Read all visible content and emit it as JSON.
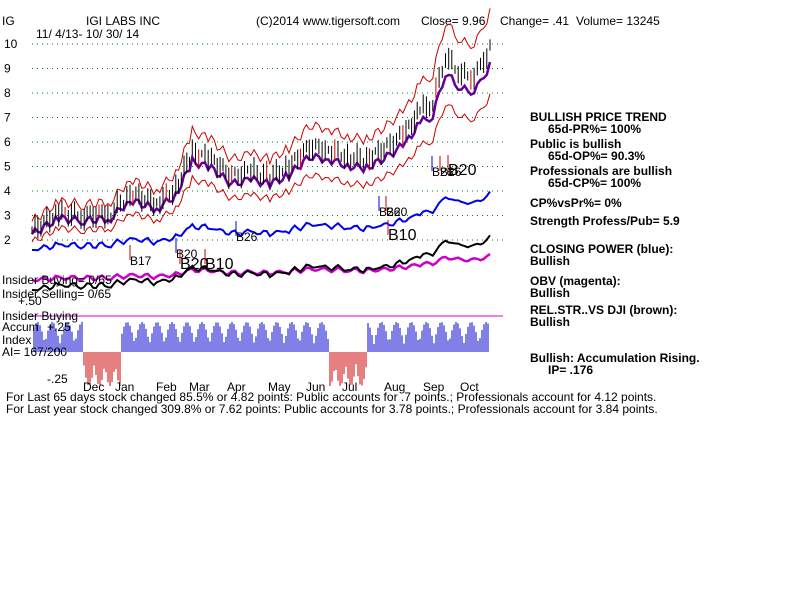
{
  "header": {
    "symbol": "IG",
    "company": "IGI LABS INC",
    "copyright": "(C)2014 www.tigersoft.com",
    "close": "Close=  9.96",
    "change": "Change= .41",
    "volume": "Volume= 13245",
    "date_range": "11/ 4/13- 10/ 30/ 14"
  },
  "y_axis_ticks": [
    "10",
    "9",
    "8",
    "7",
    "6",
    "5",
    "4",
    "3",
    "2"
  ],
  "x_axis_ticks": [
    "Dec",
    "Jan",
    "Feb",
    "Mar",
    "Apr",
    "May",
    "Jun",
    "Jul",
    "Aug",
    "Sep",
    "Oct"
  ],
  "left_labels": {
    "insider_buying_top": "Insider Buying= 0/65",
    "insider_selling": "Insider Selling= 0/65",
    "plus_50": "+.50",
    "insider_buying_bottom": "Insider Buying",
    "accum_label": "Accum",
    "accum_value": "+.25",
    "index": "Index",
    "ai": "AI= 167/200",
    "minus_25": "-.25"
  },
  "right_panel": [
    {
      "text": "BULLISH PRICE TREND",
      "bold": true
    },
    {
      "text": "65d-PR%= 100%",
      "bold": true,
      "indent": true
    },
    {
      "text": "Public is bullish",
      "bold": true
    },
    {
      "text": "65d-OP%= 90.3%",
      "bold": true,
      "indent": true
    },
    {
      "text": "Professionals are bullish",
      "bold": true
    },
    {
      "text": "65d-CP%= 100%",
      "bold": true,
      "indent": true
    },
    {
      "text": "CP%vsPr%=  0%",
      "bold": true
    },
    {
      "text": "Strength Profess/Pub= 5.9",
      "bold": true
    },
    {
      "text": "CLOSING POWER (blue):",
      "bold": true
    },
    {
      "text": "Bullish",
      "bold": true
    },
    {
      "text": "OBV (magenta):",
      "bold": true
    },
    {
      "text": "Bullish",
      "bold": true
    },
    {
      "text": "REL.STR..VS DJI (brown):",
      "bold": true
    },
    {
      "text": "Bullish",
      "bold": true
    },
    {
      "text": "Bullish: Accumulation Rising.",
      "bold": true
    },
    {
      "text": "IP=  .176",
      "bold": true,
      "indent": true
    }
  ],
  "signals": [
    "B17",
    "B20",
    "B26",
    "B20",
    "B10",
    "B26",
    "B20",
    "B26",
    "B10",
    "B26",
    "B20"
  ],
  "footer": {
    "line1": "For Last 65 days stock changed  85.5% or  4.82 points:  Public accounts for  .7 points.;  Professionals account for  4.12 points.",
    "line2": "For Last year stock changed  309.8% or  7.62 points:  Public accounts for  3.78 points.;  Professionals account for  3.84 points."
  },
  "colors": {
    "price_bar": "#000000",
    "up_bar": "#cc0000",
    "ma_purple": "#660099",
    "band_red": "#cc0000",
    "closing_power": "#0000ee",
    "obv": "#cc00cc",
    "rel_str": "#000000",
    "accum_pos": "#0000cc",
    "accum_neg": "#cc0000",
    "grid": "#008000",
    "signal_blue": "#0000ee",
    "signal_red": "#cc0000"
  },
  "chart_data": {
    "type": "line",
    "title": "IGI LABS INC",
    "series": [
      {
        "name": "Close",
        "x": [
          "2013-11-04",
          "2013-11-25",
          "2013-12-15",
          "2014-01-05",
          "2014-01-20",
          "2014-02-10",
          "2014-02-25",
          "2014-03-10",
          "2014-03-25",
          "2014-04-10",
          "2014-04-25",
          "2014-05-10",
          "2014-05-25",
          "2014-06-10",
          "2014-06-25",
          "2014-07-10",
          "2014-07-25",
          "2014-08-10",
          "2014-08-25",
          "2014-09-05",
          "2014-09-15",
          "2014-09-25",
          "2014-10-05",
          "2014-10-15",
          "2014-10-25",
          "2014-10-30"
        ],
        "values": [
          2.4,
          3.1,
          3.0,
          3.1,
          3.9,
          3.5,
          4.1,
          5.6,
          5.3,
          4.6,
          4.8,
          4.6,
          5.0,
          5.8,
          5.7,
          5.4,
          5.3,
          5.8,
          6.4,
          7.3,
          7.6,
          9.5,
          8.9,
          8.6,
          9.2,
          9.96
        ]
      }
    ],
    "ylim": [
      2,
      10
    ],
    "grid": true,
    "ylabel": "",
    "xlabel": ""
  }
}
